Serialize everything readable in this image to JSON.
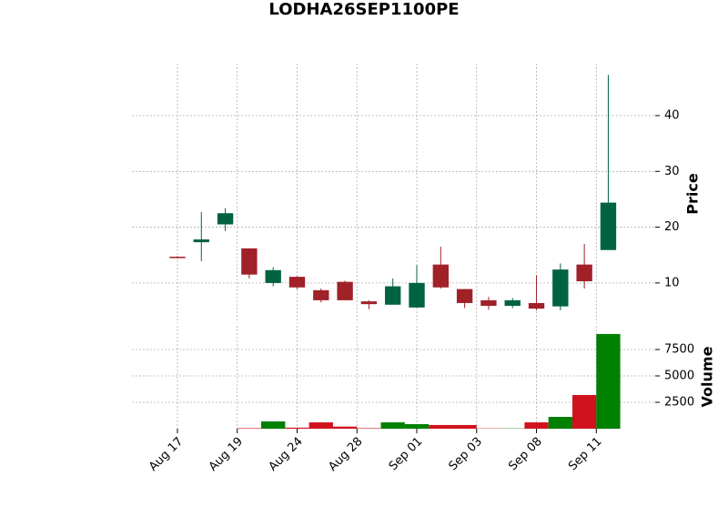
{
  "chart_data": {
    "type": "candlestick",
    "title": "LODHA26SEP1100PE",
    "ylabel": "Price",
    "volume_label": "Volume",
    "x": [
      0,
      1,
      2,
      3,
      4,
      5,
      6,
      7,
      8,
      9,
      10,
      11,
      12,
      13,
      14,
      15,
      16,
      17,
      18
    ],
    "open": [
      14.7,
      17.3,
      20.5,
      16.2,
      10.0,
      11.1,
      8.7,
      10.2,
      6.7,
      6.1,
      5.6,
      13.3,
      8.9,
      6.9,
      5.9,
      6.4,
      5.8,
      13.3,
      15.9
    ],
    "high": [
      14.8,
      22.7,
      23.4,
      16.2,
      12.8,
      11.2,
      9.0,
      10.4,
      6.9,
      10.8,
      13.2,
      16.5,
      8.9,
      7.5,
      7.3,
      11.4,
      13.5,
      17.0,
      47.3
    ],
    "low": [
      14.4,
      13.9,
      19.3,
      10.8,
      9.4,
      8.9,
      6.5,
      6.9,
      5.3,
      6.1,
      5.6,
      9.0,
      5.5,
      5.2,
      5.5,
      5.1,
      5.1,
      9.0,
      15.9
    ],
    "close": [
      14.5,
      17.8,
      22.5,
      11.5,
      12.3,
      9.2,
      6.9,
      6.9,
      6.2,
      9.4,
      10.0,
      9.2,
      6.4,
      5.9,
      6.9,
      5.4,
      12.4,
      10.3,
      24.4
    ],
    "volume": [
      0,
      0,
      0,
      50,
      690,
      100,
      600,
      200,
      50,
      600,
      430,
      350,
      350,
      30,
      30,
      600,
      1120,
      3190,
      8970
    ],
    "up_color": "#006340",
    "down_color": "#a02128",
    "volume_up_color": "#008000",
    "volume_down_color": "#d0121f",
    "xlim": [
      -1.9,
      19.96
    ],
    "xticks": [
      {
        "value": 0,
        "label": "Aug 17"
      },
      {
        "value": 2.5,
        "label": "Aug 19"
      },
      {
        "value": 5,
        "label": "Aug 24"
      },
      {
        "value": 7.5,
        "label": "Aug 28"
      },
      {
        "value": 10,
        "label": "Sep 01"
      },
      {
        "value": 12.5,
        "label": "Sep 03"
      },
      {
        "value": 15,
        "label": "Sep 08"
      },
      {
        "value": 17.5,
        "label": "Sep 11"
      }
    ],
    "ylim": [
      2.8,
      49.3
    ],
    "yticks": [
      10,
      20,
      30,
      40
    ],
    "volume_ylim": [
      0,
      9740
    ],
    "volume_yticks": [
      2500,
      5000,
      7500
    ],
    "grid": true
  }
}
